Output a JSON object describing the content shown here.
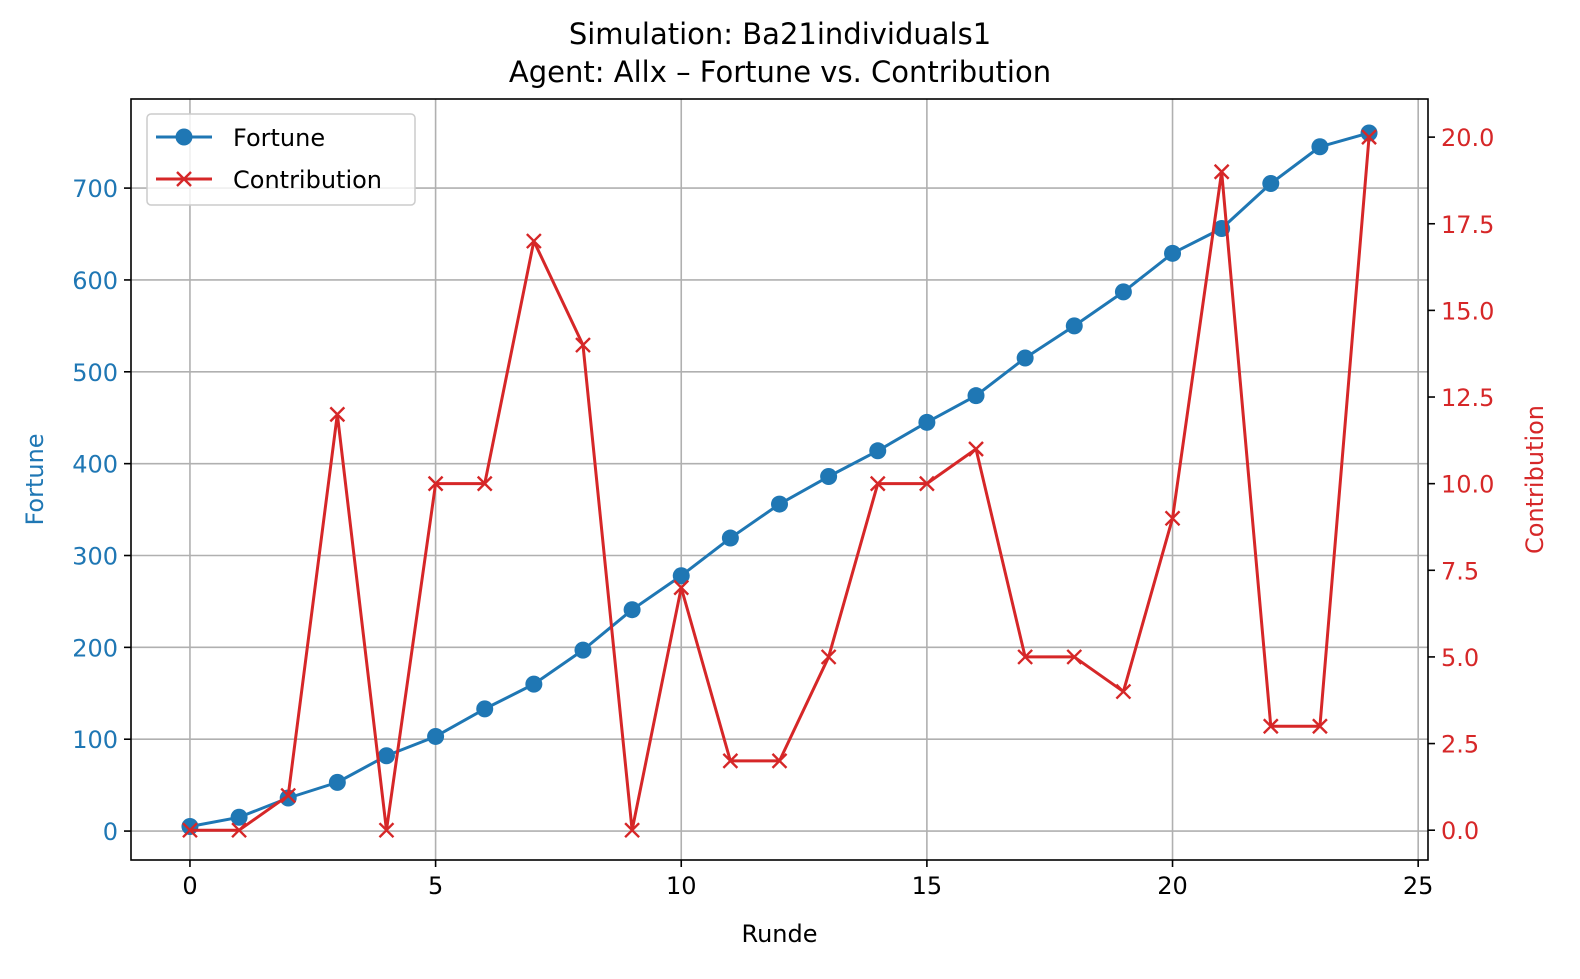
{
  "chart_data": {
    "type": "line",
    "title": "Simulation: Ba21individuals1",
    "subtitle": "Agent: Allx – Fortune vs. Contribution",
    "xlabel": "Runde",
    "ylabel_left": "Fortune",
    "ylabel_right": "Contribution",
    "xlim": [
      -1.2,
      25.2
    ],
    "ylim_left": [
      -31.5,
      797
    ],
    "ylim_right": [
      -0.86,
      21.1
    ],
    "x_ticks": [
      0,
      5,
      10,
      15,
      20,
      25
    ],
    "y_ticks_left": [
      0,
      100,
      200,
      300,
      400,
      500,
      600,
      700
    ],
    "y_ticks_right": [
      0.0,
      2.5,
      5.0,
      7.5,
      10.0,
      12.5,
      15.0,
      17.5,
      20.0
    ],
    "y_tick_labels_right": [
      "0.0",
      "2.5",
      "5.0",
      "7.5",
      "10.0",
      "12.5",
      "15.0",
      "17.5",
      "20.0"
    ],
    "grid": true,
    "legend_position": "upper-left",
    "x": [
      0,
      1,
      2,
      3,
      4,
      5,
      6,
      7,
      8,
      9,
      10,
      11,
      12,
      13,
      14,
      15,
      16,
      17,
      18,
      19,
      20,
      21,
      22,
      23,
      24
    ],
    "series": [
      {
        "name": "Fortune",
        "axis": "left",
        "color": "#1f77b4",
        "marker": "circle",
        "values": [
          5,
          15,
          36,
          53,
          82,
          103,
          133,
          160,
          197,
          241,
          278,
          319,
          356,
          386,
          414,
          445,
          474,
          515,
          550,
          587,
          629,
          656,
          705,
          745,
          760
        ]
      },
      {
        "name": "Contribution",
        "axis": "right",
        "color": "#d62728",
        "marker": "x",
        "values": [
          0,
          0,
          1,
          12,
          0,
          10,
          10,
          17,
          14,
          0,
          7,
          2,
          2,
          5,
          10,
          10,
          11,
          5,
          5,
          4,
          9,
          19,
          3,
          3,
          20
        ]
      }
    ]
  }
}
